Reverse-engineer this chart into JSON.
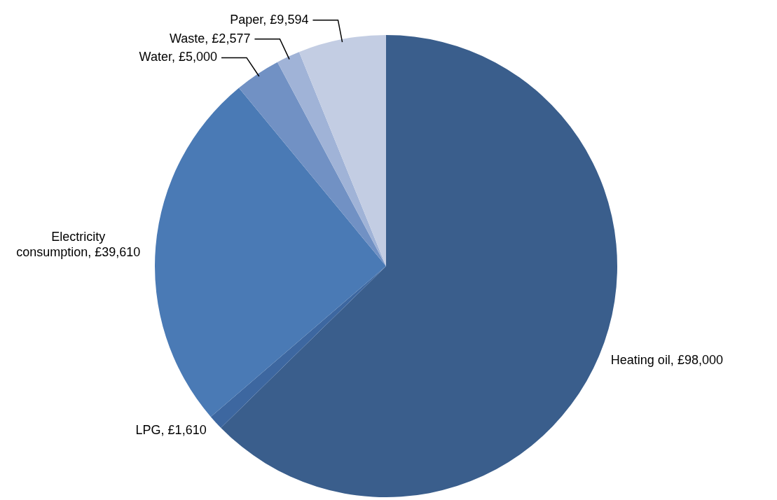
{
  "chart_data": {
    "type": "pie",
    "categories": [
      "Heating oil",
      "LPG",
      "Electricity consumption",
      "Water",
      "Waste",
      "Paper"
    ],
    "values": [
      98000,
      1610,
      39610,
      5000,
      2577,
      9594
    ],
    "value_labels": [
      "£98,000",
      "£1,610",
      "£39,610",
      "£5,000",
      "£2,577",
      "£9,594"
    ],
    "colors": [
      "#3a5e8c",
      "#3d67a0",
      "#4a7ab5",
      "#7191c4",
      "#a0b3d7",
      "#c3cde3"
    ],
    "legend": false
  }
}
